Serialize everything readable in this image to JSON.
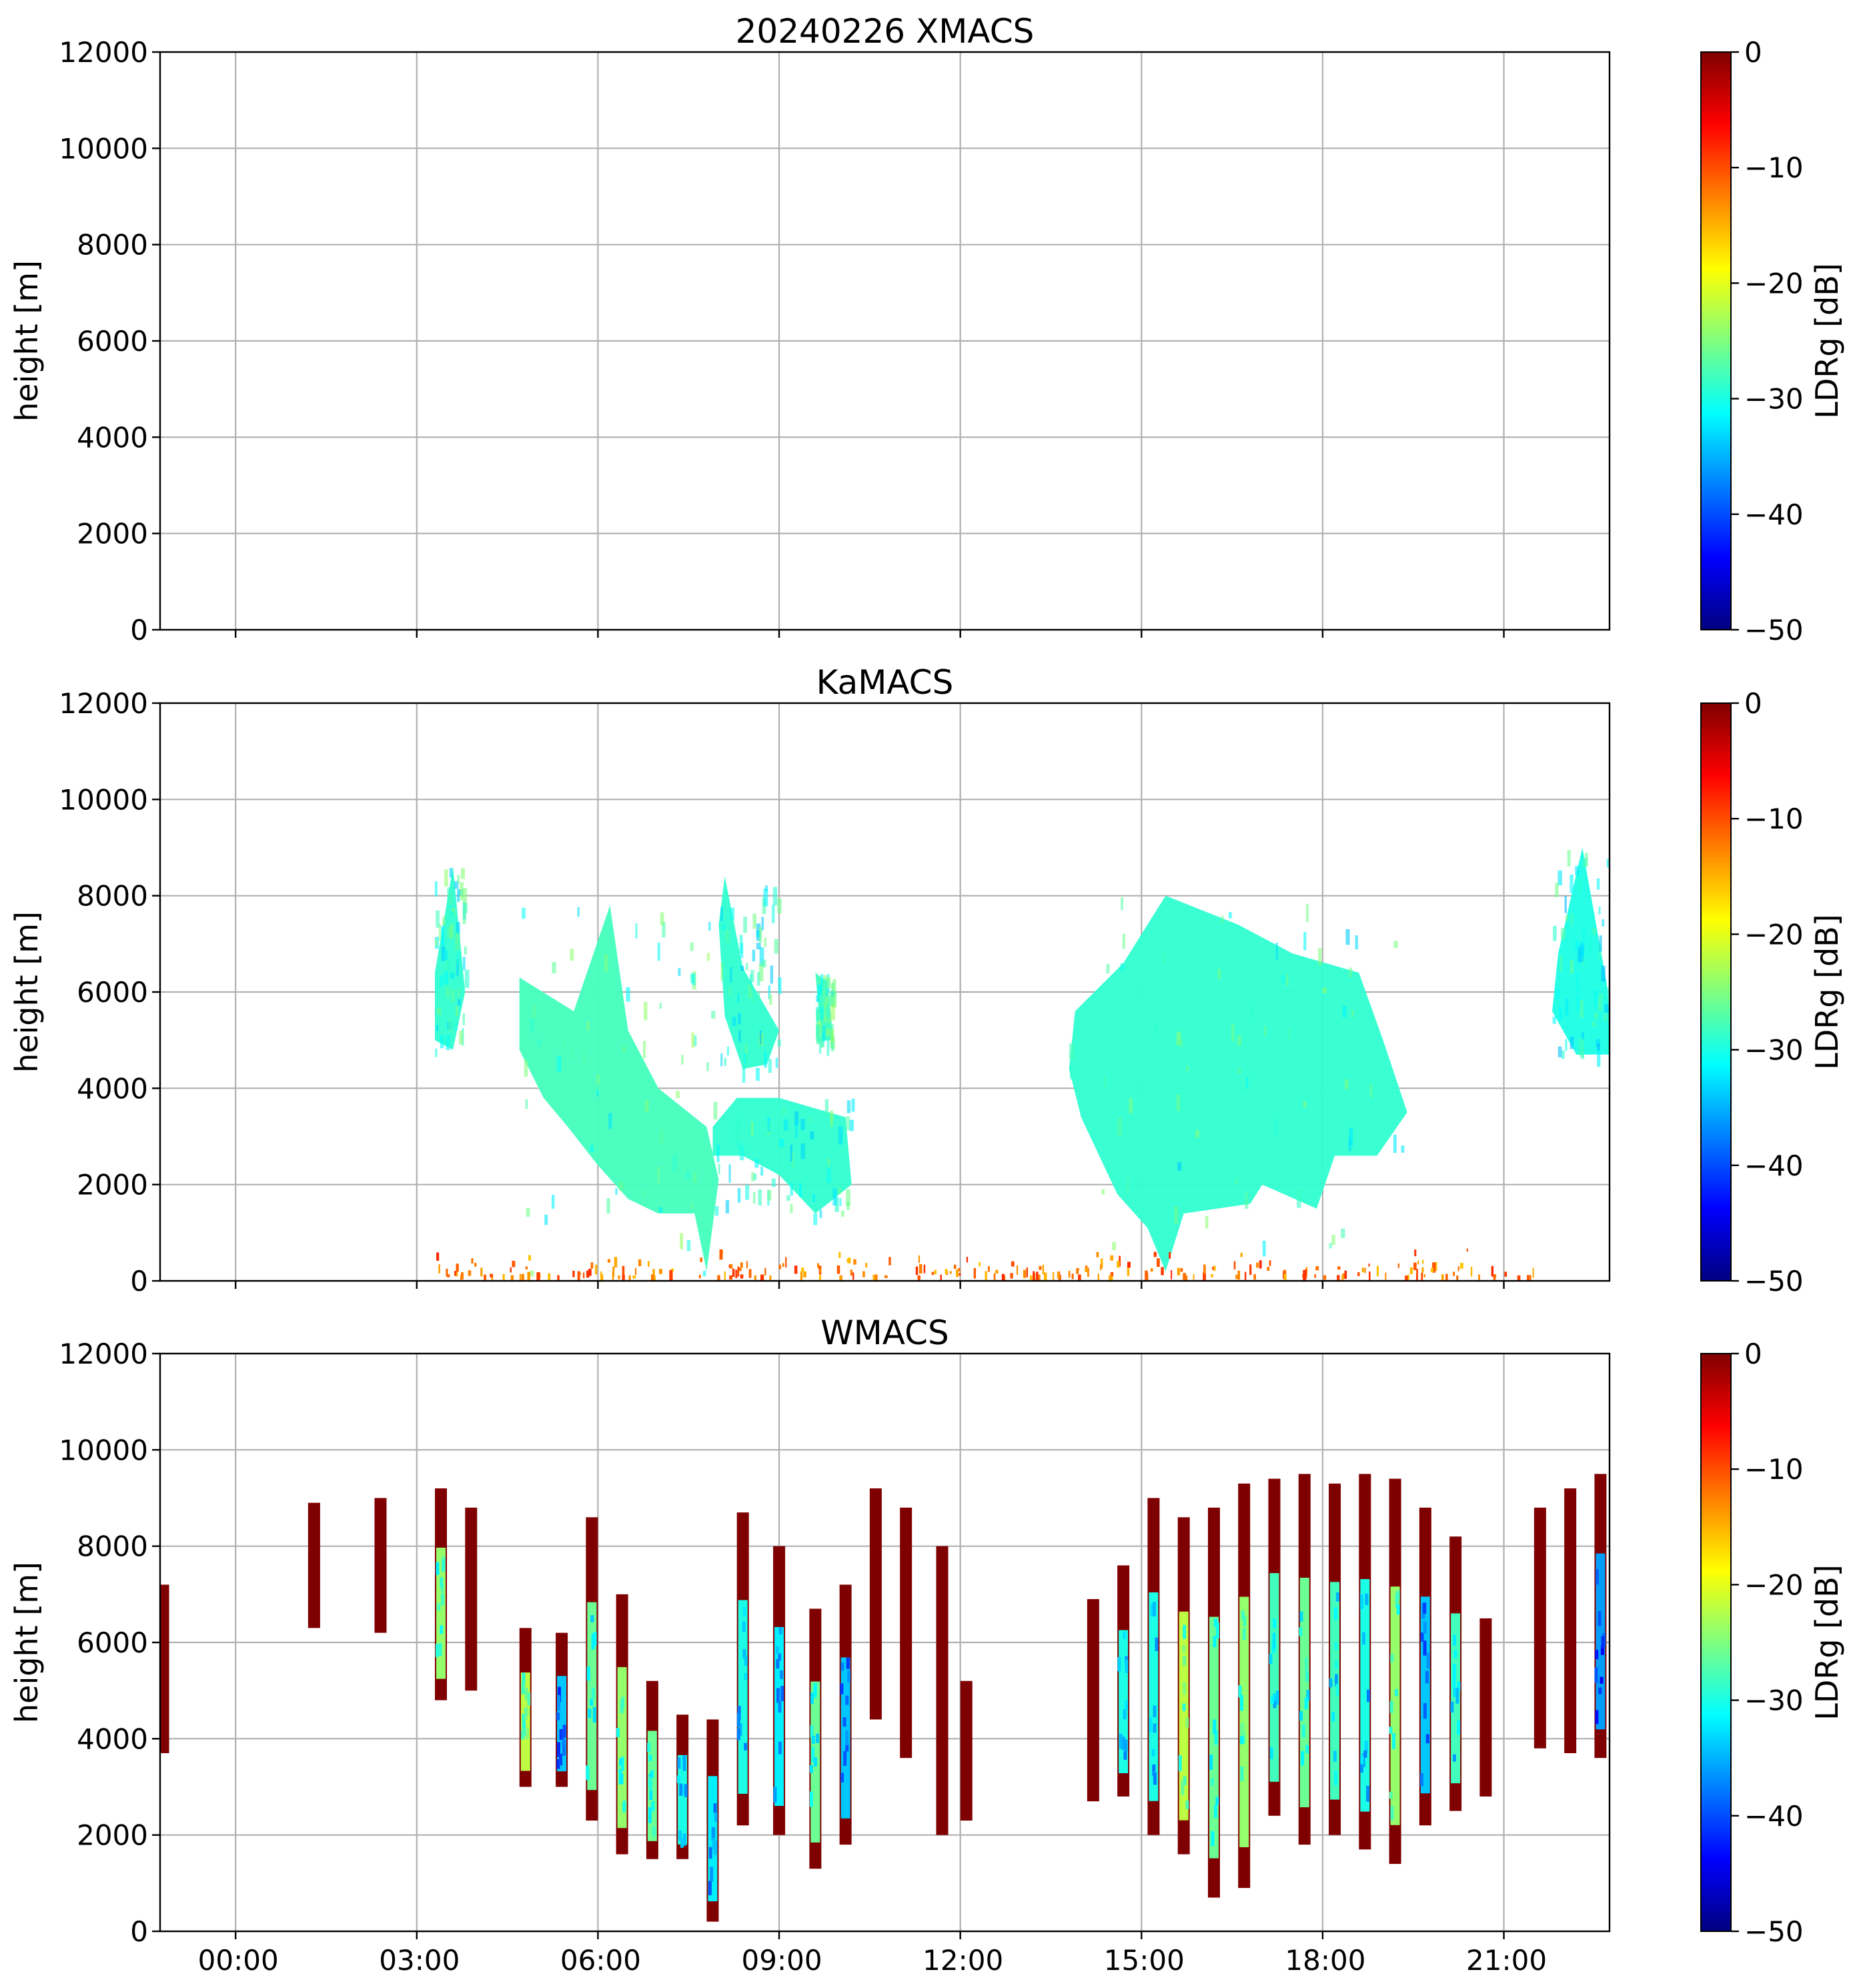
{
  "colors": {
    "background": "#ffffff",
    "axis": "#000000",
    "grid": "#b0b0b0",
    "saturated": "#7f0000"
  },
  "chart_data": [
    {
      "type": "heatmap",
      "title": "20240226 XMACS",
      "xlabel": "",
      "ylabel": "height [m]",
      "ylim": [
        0,
        12000
      ],
      "yticks": [
        "0",
        "2000",
        "4000",
        "6000",
        "8000",
        "10000",
        "12000"
      ],
      "xlim_hours": [
        -1.25,
        22.75
      ],
      "xticks": [],
      "grid": true,
      "colorbar": {
        "label": "LDRg [dB]",
        "range": [
          -50,
          0
        ],
        "ticks": [
          "0",
          "−10",
          "−20",
          "−30",
          "−40",
          "−50"
        ],
        "colormap": "jet"
      },
      "regions": []
    },
    {
      "type": "heatmap",
      "title": "KaMACS",
      "xlabel": "",
      "ylabel": "height [m]",
      "ylim": [
        0,
        12000
      ],
      "yticks": [
        "0",
        "2000",
        "4000",
        "6000",
        "8000",
        "10000",
        "12000"
      ],
      "xlim_hours": [
        -1.25,
        22.75
      ],
      "xticks": [],
      "grid": true,
      "colorbar": {
        "label": "LDRg [dB]",
        "range": [
          -50,
          0
        ],
        "ticks": [
          "0",
          "−10",
          "−20",
          "−30",
          "−40",
          "−50"
        ],
        "colormap": "jet"
      },
      "regions": [
        {
          "name": "cirrus-0230",
          "points": [
            [
              3.3,
              6400
            ],
            [
              3.6,
              8600
            ],
            [
              3.8,
              6000
            ],
            [
              3.6,
              4800
            ],
            [
              3.3,
              5000
            ]
          ],
          "ldr": -29
        },
        {
          "name": "cloud-0630",
          "points": [
            [
              4.7,
              6300
            ],
            [
              5.6,
              5600
            ],
            [
              6.2,
              7800
            ],
            [
              6.5,
              5200
            ],
            [
              7.0,
              4000
            ],
            [
              7.8,
              3200
            ],
            [
              8.0,
              2100
            ],
            [
              7.8,
              200
            ],
            [
              7.6,
              1400
            ],
            [
              7.0,
              1400
            ],
            [
              6.5,
              1700
            ],
            [
              6.0,
              2400
            ],
            [
              5.5,
              3200
            ],
            [
              5.1,
              3800
            ],
            [
              4.7,
              4800
            ]
          ],
          "ldr": -28
        },
        {
          "name": "cirrus-0830",
          "points": [
            [
              8.0,
              7400
            ],
            [
              8.1,
              8400
            ],
            [
              8.4,
              6500
            ],
            [
              9.0,
              5200
            ],
            [
              8.8,
              4500
            ],
            [
              8.4,
              4400
            ],
            [
              8.1,
              5500
            ]
          ],
          "ldr": -29
        },
        {
          "name": "cirrus-1000",
          "points": [
            [
              9.6,
              6400
            ],
            [
              9.8,
              6200
            ],
            [
              9.9,
              5000
            ],
            [
              9.7,
              5000
            ]
          ],
          "ldr": -28
        },
        {
          "name": "midlevel-0900",
          "points": [
            [
              7.9,
              3200
            ],
            [
              8.3,
              3800
            ],
            [
              9.0,
              3800
            ],
            [
              10.1,
              3400
            ],
            [
              10.2,
              2000
            ],
            [
              9.6,
              1400
            ],
            [
              9.0,
              2200
            ],
            [
              8.4,
              2600
            ],
            [
              7.9,
              2600
            ]
          ],
          "ldr": -29
        },
        {
          "name": "cloud-1500",
          "points": [
            [
              13.9,
              5600
            ],
            [
              14.7,
              6600
            ],
            [
              15.4,
              8000
            ],
            [
              16.6,
              7400
            ],
            [
              17.5,
              6800
            ],
            [
              18.6,
              6400
            ],
            [
              19.0,
              5000
            ],
            [
              19.4,
              3500
            ],
            [
              18.9,
              2600
            ],
            [
              18.2,
              2600
            ],
            [
              17.9,
              1500
            ],
            [
              17.0,
              2000
            ],
            [
              16.8,
              1600
            ],
            [
              15.7,
              1400
            ],
            [
              15.4,
              200
            ],
            [
              15.1,
              1100
            ],
            [
              14.6,
              1800
            ],
            [
              14.3,
              2600
            ],
            [
              14.0,
              3400
            ],
            [
              13.8,
              4400
            ]
          ],
          "ldr": -29
        },
        {
          "name": "cirrus-2230",
          "points": [
            [
              21.9,
              6800
            ],
            [
              22.3,
              9000
            ],
            [
              22.7,
              6200
            ],
            [
              22.8,
              4700
            ],
            [
              22.2,
              4700
            ],
            [
              21.8,
              5600
            ]
          ],
          "ldr": -30
        }
      ],
      "noise_band": {
        "x_range": [
          3.0,
          21.5
        ],
        "height_range": [
          0,
          600
        ],
        "ldr": -12
      }
    },
    {
      "type": "heatmap",
      "title": "WMACS",
      "xlabel": "",
      "ylabel": "height [m]",
      "ylim": [
        0,
        12000
      ],
      "yticks": [
        "0",
        "2000",
        "4000",
        "6000",
        "8000",
        "10000",
        "12000"
      ],
      "xlim_hours": [
        -1.25,
        22.75
      ],
      "xticks": [
        "00:00",
        "03:00",
        "06:00",
        "09:00",
        "12:00",
        "15:00",
        "18:00",
        "21:00"
      ],
      "grid": true,
      "colorbar": {
        "label": "LDRg [dB]",
        "range": [
          -50,
          0
        ],
        "ticks": [
          "0",
          "−10",
          "−20",
          "−30",
          "−40",
          "−50"
        ],
        "colormap": "jet"
      },
      "stripes": [
        {
          "x": -1.2,
          "y0": 3700,
          "y1": 7200,
          "ldr": 0
        },
        {
          "x": 1.3,
          "y0": 6300,
          "y1": 8900,
          "ldr": 0
        },
        {
          "x": 2.4,
          "y0": 6200,
          "y1": 9000,
          "ldr": 0
        },
        {
          "x": 3.4,
          "y0": 4800,
          "y1": 9200,
          "ldr": -24
        },
        {
          "x": 3.9,
          "y0": 5000,
          "y1": 8800,
          "ldr": 0
        },
        {
          "x": 4.8,
          "y0": 3000,
          "y1": 6300,
          "ldr": -22
        },
        {
          "x": 5.4,
          "y0": 3000,
          "y1": 6200,
          "ldr": -34
        },
        {
          "x": 5.9,
          "y0": 2300,
          "y1": 8600,
          "ldr": -26
        },
        {
          "x": 6.4,
          "y0": 1600,
          "y1": 7000,
          "ldr": -24
        },
        {
          "x": 6.9,
          "y0": 1500,
          "y1": 5200,
          "ldr": -26
        },
        {
          "x": 7.4,
          "y0": 1500,
          "y1": 4500,
          "ldr": -30
        },
        {
          "x": 7.9,
          "y0": 200,
          "y1": 4400,
          "ldr": -32
        },
        {
          "x": 8.4,
          "y0": 2200,
          "y1": 8700,
          "ldr": -30
        },
        {
          "x": 9.0,
          "y0": 2000,
          "y1": 8000,
          "ldr": -32
        },
        {
          "x": 9.6,
          "y0": 1300,
          "y1": 6700,
          "ldr": -26
        },
        {
          "x": 10.1,
          "y0": 1800,
          "y1": 7200,
          "ldr": -34
        },
        {
          "x": 10.6,
          "y0": 4400,
          "y1": 9200,
          "ldr": 0
        },
        {
          "x": 11.1,
          "y0": 3600,
          "y1": 8800,
          "ldr": 0
        },
        {
          "x": 11.7,
          "y0": 2000,
          "y1": 8000,
          "ldr": 0
        },
        {
          "x": 12.1,
          "y0": 2300,
          "y1": 5200,
          "ldr": 0
        },
        {
          "x": 14.2,
          "y0": 2700,
          "y1": 6900,
          "ldr": 0
        },
        {
          "x": 14.7,
          "y0": 2800,
          "y1": 7600,
          "ldr": -30
        },
        {
          "x": 15.2,
          "y0": 2000,
          "y1": 9000,
          "ldr": -30
        },
        {
          "x": 15.7,
          "y0": 1600,
          "y1": 8600,
          "ldr": -22
        },
        {
          "x": 16.2,
          "y0": 700,
          "y1": 8800,
          "ldr": -26
        },
        {
          "x": 16.7,
          "y0": 900,
          "y1": 9300,
          "ldr": -24
        },
        {
          "x": 17.2,
          "y0": 2400,
          "y1": 9400,
          "ldr": -28
        },
        {
          "x": 17.7,
          "y0": 1800,
          "y1": 9500,
          "ldr": -26
        },
        {
          "x": 18.2,
          "y0": 2000,
          "y1": 9300,
          "ldr": -28
        },
        {
          "x": 18.7,
          "y0": 1700,
          "y1": 9500,
          "ldr": -30
        },
        {
          "x": 19.2,
          "y0": 1400,
          "y1": 9400,
          "ldr": -24
        },
        {
          "x": 19.7,
          "y0": 2200,
          "y1": 8800,
          "ldr": -34
        },
        {
          "x": 20.2,
          "y0": 2500,
          "y1": 8200,
          "ldr": -28
        },
        {
          "x": 20.7,
          "y0": 2800,
          "y1": 6500,
          "ldr": 0
        },
        {
          "x": 21.6,
          "y0": 3800,
          "y1": 8800,
          "ldr": 0
        },
        {
          "x": 22.1,
          "y0": 3700,
          "y1": 9200,
          "ldr": 0
        },
        {
          "x": 22.6,
          "y0": 3600,
          "y1": 9500,
          "ldr": -36
        }
      ]
    }
  ]
}
